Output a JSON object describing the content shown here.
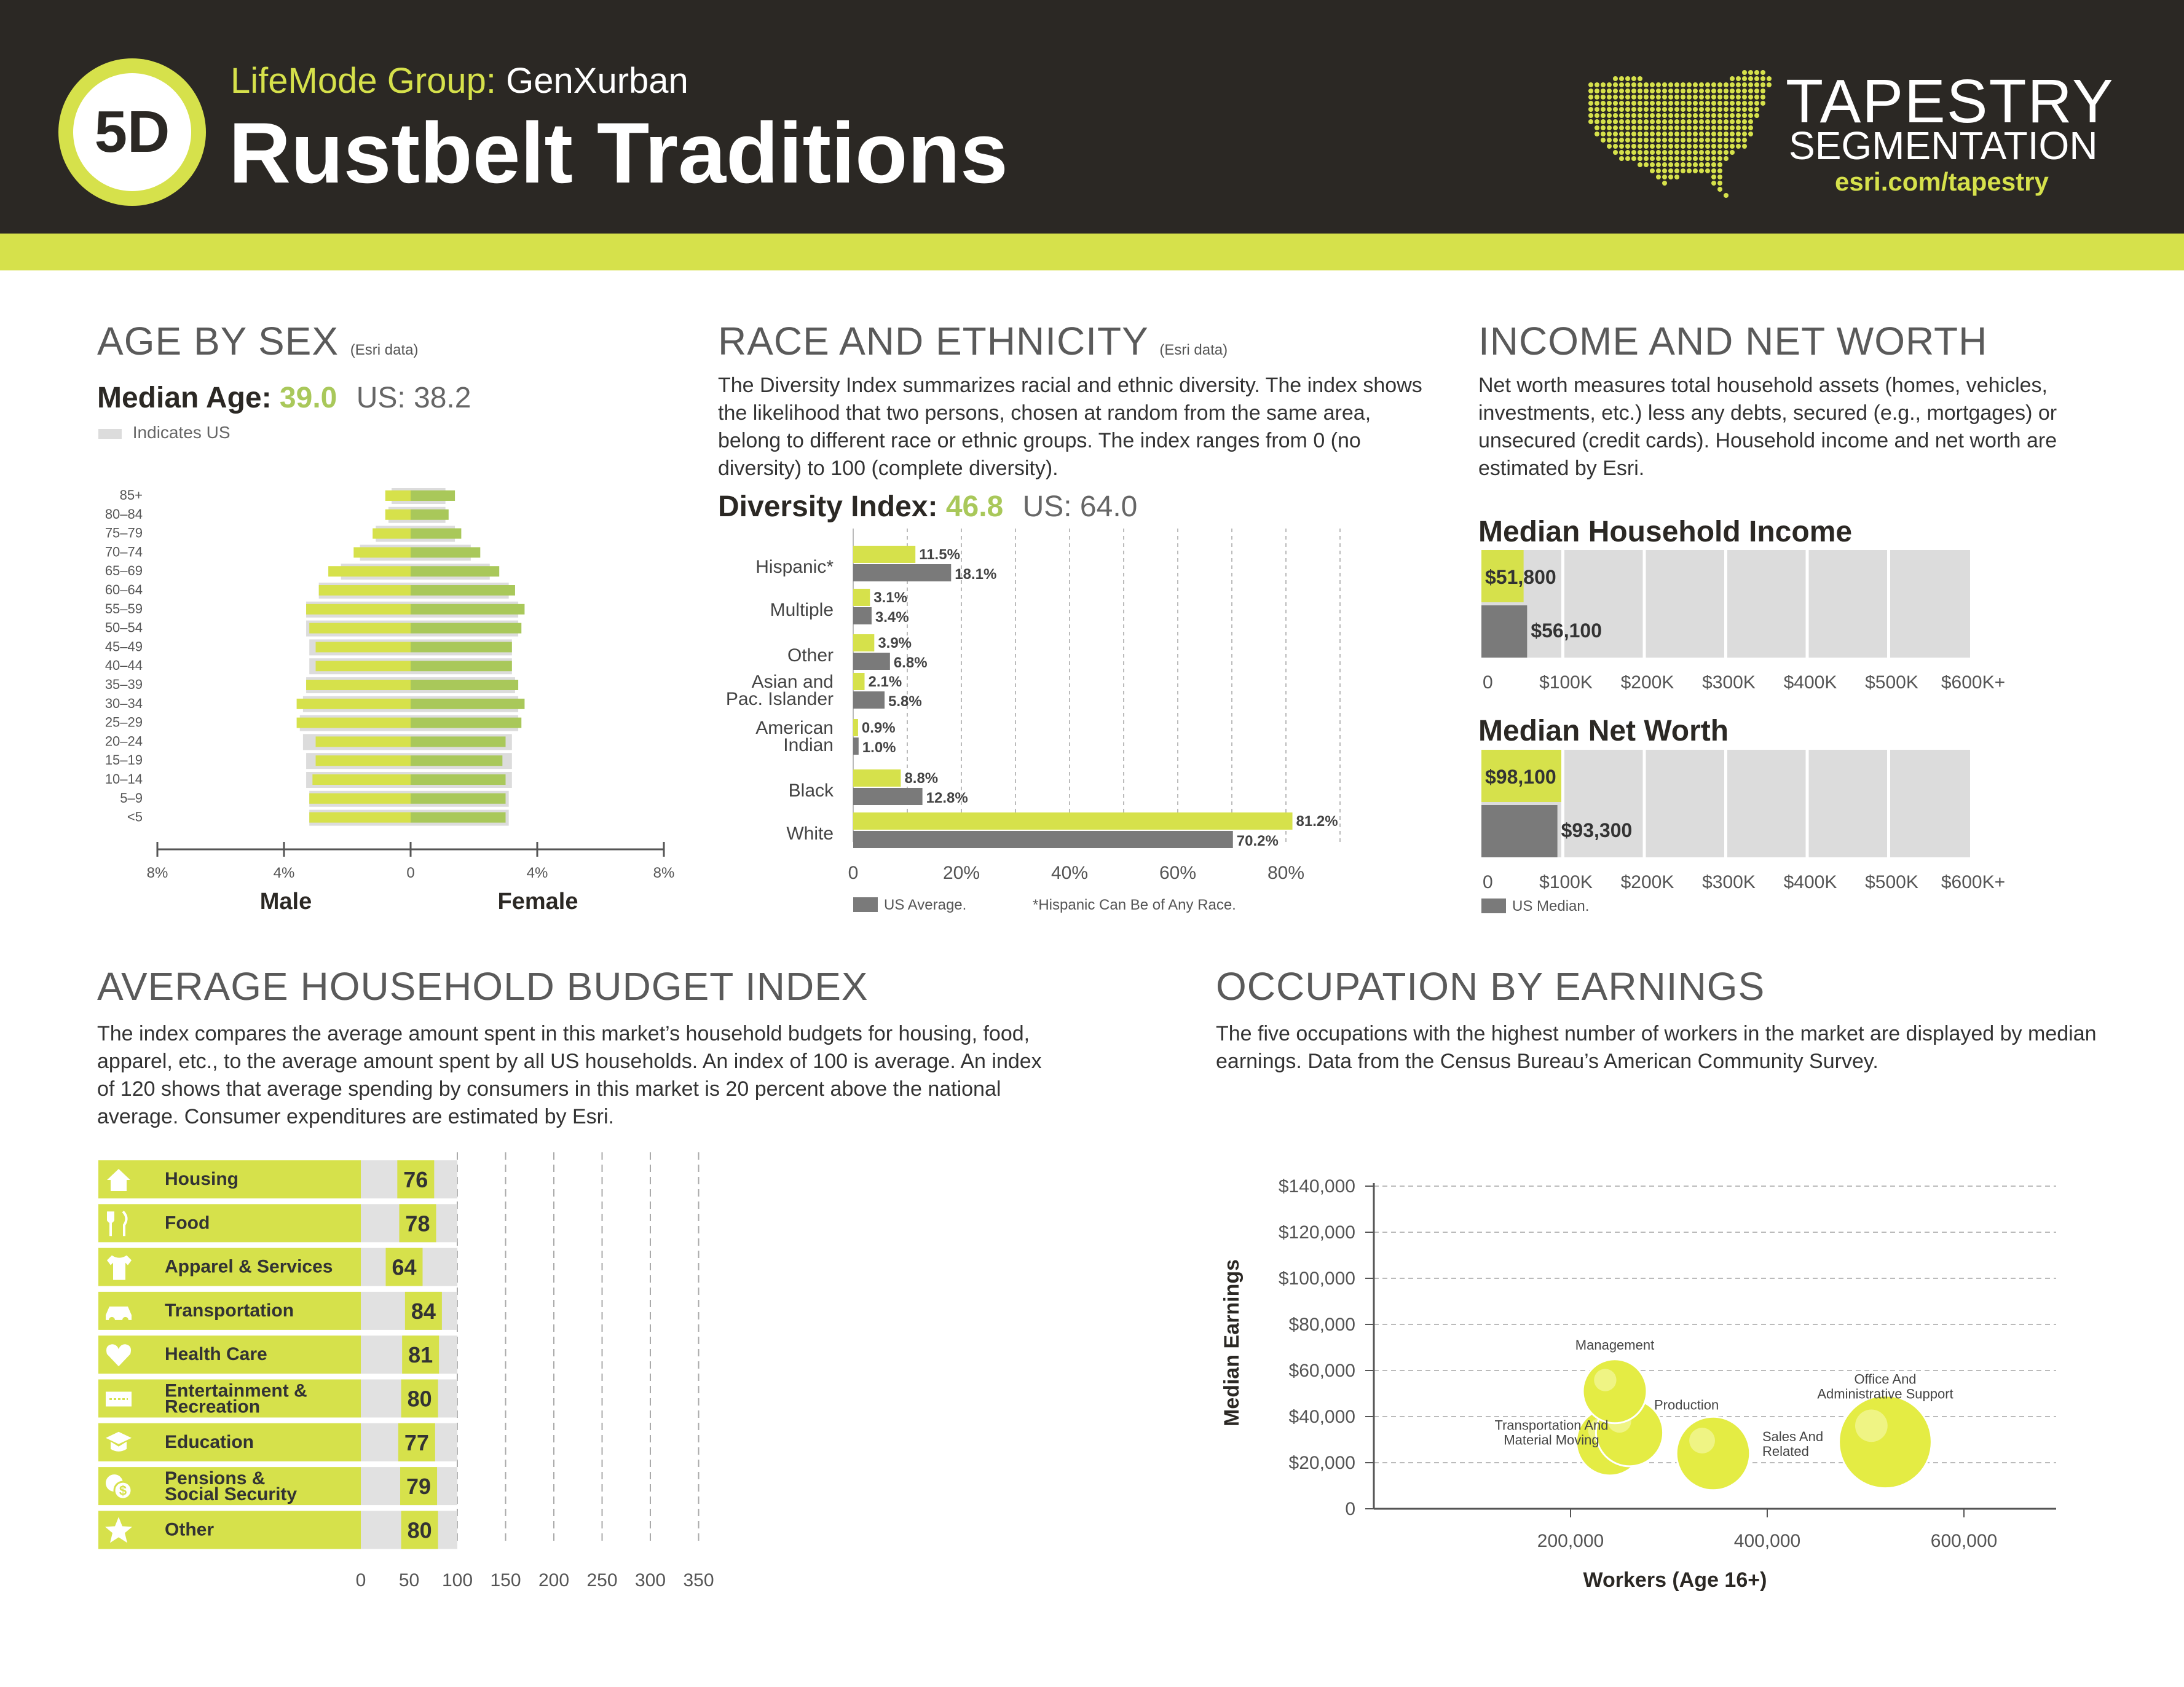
{
  "header": {
    "badge": "5D",
    "lifemode_prefix": "LifeMode Group:",
    "lifemode_name": "GenXurban",
    "title": "Rustbelt Traditions",
    "brand_line1": "TAPESTRY",
    "brand_line2": "SEGMENTATION",
    "brand_url": "esri.com/tapestry"
  },
  "colors": {
    "lime": "#d6e14b",
    "green": "#a9c85a",
    "dark": "#2b2824",
    "grey": "#7a7a7a",
    "light_grey": "#dcdcdc"
  },
  "age_by_sex": {
    "title": "AGE BY SEX",
    "source": "(Esri data)",
    "median_label": "Median Age:",
    "median_value": "39.0",
    "us_median": "US: 38.2",
    "legend_us": "Indicates US",
    "male_label": "Male",
    "female_label": "Female",
    "axis_ticks": [
      "8%",
      "4%",
      "0",
      "4%",
      "8%"
    ]
  },
  "race": {
    "title": "RACE AND ETHNICITY",
    "source": "(Esri data)",
    "description": "The Diversity Index summarizes racial and ethnic diversity. The index shows the likelihood that two persons, chosen at random from the same area, belong to different race or ethnic groups. The index ranges from 0 (no diversity) to 100 (complete diversity).",
    "diversity_label": "Diversity Index:",
    "diversity_value": "46.8",
    "us_diversity": "US: 64.0",
    "legend_us": "US Average.",
    "footnote": "*Hispanic Can Be of Any Race.",
    "axis_ticks": [
      "0",
      "20%",
      "40%",
      "60%",
      "80%"
    ]
  },
  "income": {
    "title": "INCOME AND NET WORTH",
    "description": "Net worth measures total household assets (homes, vehicles, investments, etc.) less any debts, secured (e.g., mortgages) or unsecured (credit cards). Household income and net worth are estimated by Esri.",
    "income_title": "Median Household Income",
    "income_value_label": "$51,800",
    "income_us_label": "$56,100",
    "networth_title": "Median Net Worth",
    "networth_value_label": "$98,100",
    "networth_us_label": "$93,300",
    "axis_ticks": [
      "0",
      "$100K",
      "$200K",
      "$300K",
      "$400K",
      "$500K",
      "$600K+"
    ],
    "legend_us": "US Median."
  },
  "budget": {
    "title": "AVERAGE HOUSEHOLD BUDGET INDEX",
    "description": "The index compares the average amount spent in this market’s household budgets for housing, food, apparel, etc., to the average amount spent by all US households. An index of 100 is average. An index of 120 shows that average spending by consumers in this market is 20 percent above the national average. Consumer expenditures are estimated by Esri.",
    "axis_ticks": [
      "0",
      "50",
      "100",
      "150",
      "200",
      "250",
      "300",
      "350"
    ]
  },
  "occupation": {
    "title": "OCCUPATION BY EARNINGS",
    "description": "The five occupations with the highest number of workers in the market are displayed by median earnings. Data from the Census Bureau’s American Community Survey.",
    "ylabel": "Median Earnings",
    "xlabel": "Workers (Age 16+)",
    "y_ticks": [
      "$140,000",
      "$120,000",
      "$100,000",
      "$80,000",
      "$60,000",
      "$40,000",
      "$20,000",
      "0"
    ],
    "x_ticks": [
      "200,000",
      "400,000",
      "600,000"
    ]
  },
  "chart_data": [
    {
      "type": "bar",
      "id": "age_pyramid",
      "categories": [
        "85+",
        "80–84",
        "75–79",
        "70–74",
        "65–69",
        "60–64",
        "55–59",
        "50–54",
        "45–49",
        "40–44",
        "35–39",
        "30–34",
        "25–29",
        "20–24",
        "15–19",
        "10–14",
        "5–9",
        "<5"
      ],
      "series": [
        {
          "name": "Male",
          "values": [
            0.8,
            0.8,
            1.2,
            1.8,
            2.6,
            2.9,
            3.3,
            3.2,
            3.0,
            3.0,
            3.3,
            3.6,
            3.6,
            3.0,
            3.0,
            3.1,
            3.2,
            3.2
          ]
        },
        {
          "name": "Female",
          "values": [
            1.4,
            1.2,
            1.6,
            2.2,
            2.8,
            3.3,
            3.6,
            3.5,
            3.2,
            3.2,
            3.4,
            3.6,
            3.5,
            3.0,
            2.9,
            3.0,
            3.0,
            3.0
          ]
        },
        {
          "name": "US Male",
          "values": [
            0.6,
            0.7,
            1.1,
            1.6,
            2.2,
            2.9,
            3.3,
            3.3,
            3.2,
            3.2,
            3.3,
            3.4,
            3.5,
            3.4,
            3.3,
            3.3,
            3.2,
            3.2
          ]
        },
        {
          "name": "US Female",
          "values": [
            1.1,
            1.1,
            1.4,
            1.9,
            2.5,
            3.1,
            3.4,
            3.4,
            3.2,
            3.2,
            3.3,
            3.4,
            3.4,
            3.2,
            3.2,
            3.2,
            3.1,
            3.1
          ]
        }
      ],
      "xlim": [
        -8,
        8
      ],
      "xlabel": "",
      "ylabel": ""
    },
    {
      "type": "bar",
      "id": "race_ethnicity",
      "categories": [
        "Hispanic*",
        "Multiple",
        "Other",
        "Asian and\nPac. Islander",
        "American\nIndian",
        "Black",
        "White"
      ],
      "series": [
        {
          "name": "",
          "values": [
            11.5,
            3.1,
            3.9,
            2.1,
            0.9,
            8.8,
            81.2
          ]
        },
        {
          "name": "US Average.",
          "values": [
            18.1,
            3.4,
            6.8,
            5.8,
            1.0,
            12.8,
            70.2
          ]
        }
      ],
      "value_labels": [
        [
          "11.5%",
          "3.1%",
          "3.9%",
          "2.1%",
          "0.9%",
          "8.8%",
          "81.2%"
        ],
        [
          "18.1%",
          "3.4%",
          "6.8%",
          "5.8%",
          "1.0%",
          "12.8%",
          "70.2%"
        ]
      ],
      "xlim": [
        0,
        90
      ]
    },
    {
      "type": "bar",
      "id": "median_household_income",
      "categories": [
        "Rustbelt Traditions",
        "US Median."
      ],
      "values": [
        51800,
        56100
      ],
      "xlim": [
        0,
        600000
      ]
    },
    {
      "type": "bar",
      "id": "median_net_worth",
      "categories": [
        "Rustbelt Traditions",
        "US Median."
      ],
      "values": [
        98100,
        93300
      ],
      "xlim": [
        0,
        600000
      ]
    },
    {
      "type": "bar",
      "id": "budget_index",
      "categories": [
        "Housing",
        "Food",
        "Apparel & Services",
        "Transportation",
        "Health Care",
        "Entertainment &\nRecreation",
        "Education",
        "Pensions &\nSocial Security",
        "Other"
      ],
      "icons": [
        "house-icon",
        "fork-knife-icon",
        "shirt-icon",
        "car-icon",
        "heart-icon",
        "ticket-icon",
        "graduation-cap-icon",
        "money-icon",
        "star-icon"
      ],
      "values": [
        76,
        78,
        64,
        84,
        81,
        80,
        77,
        79,
        80
      ],
      "xlim": [
        0,
        350
      ]
    },
    {
      "type": "scatter",
      "id": "occupation_earnings",
      "points": [
        {
          "label": "Management",
          "x": 245000,
          "y": 51000,
          "r": 1.0
        },
        {
          "label": "Production",
          "x": 260000,
          "y": 33000,
          "r": 1.05
        },
        {
          "label": "Transportation And\nMaterial Moving",
          "x": 240000,
          "y": 29000,
          "r": 1.05
        },
        {
          "label": "Sales And\nRelated",
          "x": 345000,
          "y": 24000,
          "r": 1.15
        },
        {
          "label": "Office And\nAdministrative Support",
          "x": 520000,
          "y": 29000,
          "r": 1.45
        }
      ],
      "xlim": [
        0,
        700000
      ],
      "ylim": [
        0,
        140000
      ],
      "xlabel": "Workers (Age 16+)",
      "ylabel": "Median Earnings"
    }
  ]
}
